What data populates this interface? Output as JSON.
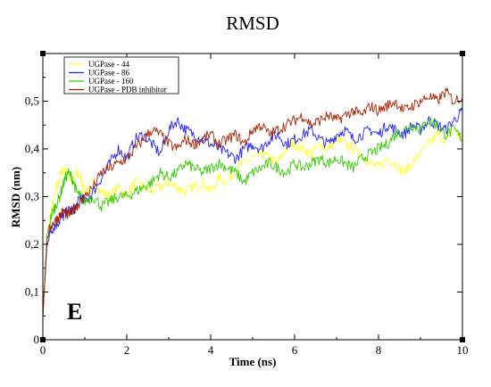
{
  "chart_data": {
    "type": "line",
    "title": "RMSD",
    "xlabel": "Time (ns)",
    "ylabel": "RMSD (nm)",
    "panel_label": "E",
    "xlim": [
      0,
      10
    ],
    "ylim": [
      0,
      0.6
    ],
    "x_ticks": [
      "0",
      "2",
      "4",
      "6",
      "8",
      "10"
    ],
    "y_ticks": [
      "0",
      "0,1",
      "0,2",
      "0,3",
      "0,4",
      "0,5"
    ],
    "grid": false,
    "legend_position": "top-left",
    "series": [
      {
        "name": "UGPase - 44",
        "color": "#ffff33",
        "x": [
          0,
          0.1,
          0.2,
          0.3,
          0.4,
          0.5,
          0.6,
          0.7,
          0.8,
          0.9,
          1.0,
          1.2,
          1.4,
          1.6,
          1.8,
          2.0,
          2.2,
          2.4,
          2.6,
          2.8,
          3.0,
          3.2,
          3.4,
          3.6,
          3.8,
          4.0,
          4.2,
          4.4,
          4.6,
          4.8,
          5.0,
          5.2,
          5.4,
          5.6,
          5.8,
          6.0,
          6.2,
          6.4,
          6.6,
          6.8,
          7.0,
          7.2,
          7.4,
          7.6,
          7.8,
          8.0,
          8.2,
          8.4,
          8.6,
          8.8,
          9.0,
          9.2,
          9.4,
          9.6,
          9.8,
          10.0
        ],
        "values": [
          0.05,
          0.22,
          0.27,
          0.31,
          0.34,
          0.36,
          0.35,
          0.33,
          0.35,
          0.34,
          0.31,
          0.33,
          0.31,
          0.3,
          0.32,
          0.3,
          0.33,
          0.32,
          0.31,
          0.32,
          0.33,
          0.32,
          0.31,
          0.32,
          0.33,
          0.31,
          0.34,
          0.33,
          0.36,
          0.37,
          0.38,
          0.39,
          0.38,
          0.37,
          0.4,
          0.41,
          0.4,
          0.39,
          0.41,
          0.4,
          0.42,
          0.41,
          0.4,
          0.39,
          0.37,
          0.36,
          0.38,
          0.37,
          0.35,
          0.37,
          0.39,
          0.41,
          0.43,
          0.42,
          0.44,
          0.42
        ]
      },
      {
        "name": "UGPase - 86",
        "color": "#2222ff",
        "x": [
          0,
          0.1,
          0.2,
          0.3,
          0.4,
          0.5,
          0.6,
          0.7,
          0.8,
          0.9,
          1.0,
          1.2,
          1.4,
          1.6,
          1.8,
          2.0,
          2.2,
          2.4,
          2.6,
          2.8,
          3.0,
          3.2,
          3.4,
          3.6,
          3.8,
          4.0,
          4.2,
          4.4,
          4.6,
          4.8,
          5.0,
          5.2,
          5.4,
          5.6,
          5.8,
          6.0,
          6.2,
          6.4,
          6.6,
          6.8,
          7.0,
          7.2,
          7.4,
          7.6,
          7.8,
          8.0,
          8.2,
          8.4,
          8.6,
          8.8,
          9.0,
          9.2,
          9.4,
          9.6,
          9.8,
          10.0
        ],
        "values": [
          0.05,
          0.2,
          0.23,
          0.24,
          0.25,
          0.26,
          0.27,
          0.27,
          0.28,
          0.3,
          0.29,
          0.31,
          0.34,
          0.37,
          0.4,
          0.38,
          0.42,
          0.43,
          0.41,
          0.39,
          0.44,
          0.46,
          0.44,
          0.43,
          0.42,
          0.41,
          0.4,
          0.39,
          0.38,
          0.4,
          0.41,
          0.4,
          0.42,
          0.43,
          0.41,
          0.42,
          0.43,
          0.44,
          0.42,
          0.41,
          0.43,
          0.44,
          0.42,
          0.43,
          0.44,
          0.43,
          0.45,
          0.44,
          0.43,
          0.45,
          0.44,
          0.46,
          0.45,
          0.44,
          0.46,
          0.48
        ]
      },
      {
        "name": "UGPase - 160",
        "color": "#33cc00",
        "x": [
          0,
          0.1,
          0.2,
          0.3,
          0.4,
          0.5,
          0.6,
          0.7,
          0.8,
          0.9,
          1.0,
          1.2,
          1.4,
          1.6,
          1.8,
          2.0,
          2.2,
          2.4,
          2.6,
          2.8,
          3.0,
          3.2,
          3.4,
          3.6,
          3.8,
          4.0,
          4.2,
          4.4,
          4.6,
          4.8,
          5.0,
          5.2,
          5.4,
          5.6,
          5.8,
          6.0,
          6.2,
          6.4,
          6.6,
          6.8,
          7.0,
          7.2,
          7.4,
          7.6,
          7.8,
          8.0,
          8.2,
          8.4,
          8.6,
          8.8,
          9.0,
          9.2,
          9.4,
          9.6,
          9.8,
          10.0
        ],
        "values": [
          0.05,
          0.22,
          0.26,
          0.28,
          0.3,
          0.33,
          0.35,
          0.34,
          0.31,
          0.3,
          0.29,
          0.3,
          0.28,
          0.29,
          0.3,
          0.3,
          0.31,
          0.32,
          0.33,
          0.35,
          0.34,
          0.35,
          0.37,
          0.36,
          0.35,
          0.36,
          0.37,
          0.36,
          0.35,
          0.33,
          0.35,
          0.36,
          0.37,
          0.36,
          0.35,
          0.37,
          0.36,
          0.37,
          0.38,
          0.37,
          0.38,
          0.37,
          0.36,
          0.38,
          0.39,
          0.4,
          0.41,
          0.43,
          0.44,
          0.45,
          0.44,
          0.46,
          0.45,
          0.43,
          0.44,
          0.42
        ]
      },
      {
        "name": "UGPase - PDB inhibitor",
        "color": "#aa2200",
        "x": [
          0,
          0.1,
          0.2,
          0.3,
          0.4,
          0.5,
          0.6,
          0.7,
          0.8,
          0.9,
          1.0,
          1.2,
          1.4,
          1.6,
          1.8,
          2.0,
          2.2,
          2.4,
          2.6,
          2.8,
          3.0,
          3.2,
          3.4,
          3.6,
          3.8,
          4.0,
          4.2,
          4.4,
          4.6,
          4.8,
          5.0,
          5.2,
          5.4,
          5.6,
          5.8,
          6.0,
          6.2,
          6.4,
          6.6,
          6.8,
          7.0,
          7.2,
          7.4,
          7.6,
          7.8,
          8.0,
          8.2,
          8.4,
          8.6,
          8.8,
          9.0,
          9.2,
          9.4,
          9.6,
          9.8,
          10.0
        ],
        "values": [
          0.05,
          0.21,
          0.24,
          0.25,
          0.26,
          0.27,
          0.26,
          0.27,
          0.28,
          0.29,
          0.3,
          0.32,
          0.35,
          0.36,
          0.37,
          0.38,
          0.4,
          0.42,
          0.44,
          0.43,
          0.41,
          0.4,
          0.42,
          0.41,
          0.42,
          0.43,
          0.41,
          0.42,
          0.43,
          0.41,
          0.44,
          0.45,
          0.43,
          0.44,
          0.45,
          0.46,
          0.47,
          0.45,
          0.46,
          0.47,
          0.46,
          0.47,
          0.48,
          0.47,
          0.49,
          0.48,
          0.49,
          0.5,
          0.48,
          0.49,
          0.5,
          0.51,
          0.5,
          0.52,
          0.5,
          0.51
        ]
      }
    ]
  }
}
